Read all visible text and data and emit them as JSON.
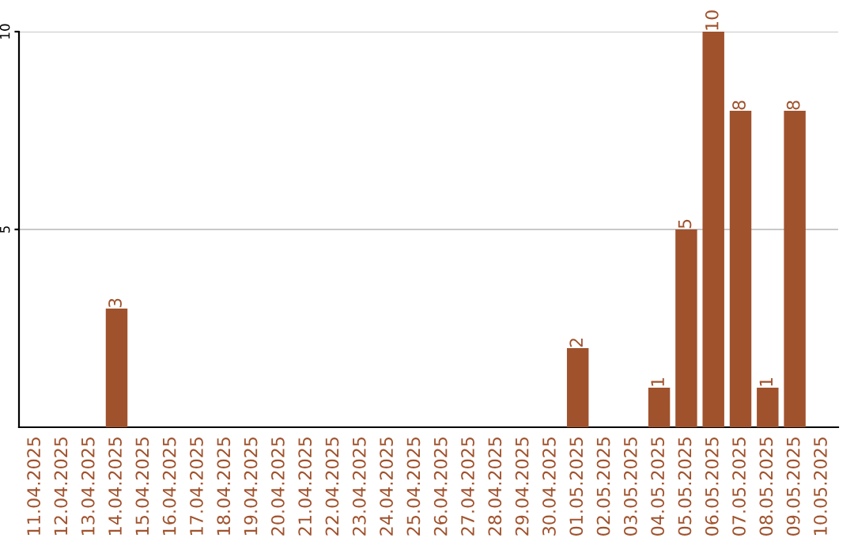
{
  "chart_data": {
    "type": "bar",
    "categories": [
      "11.04.2025",
      "12.04.2025",
      "13.04.2025",
      "14.04.2025",
      "15.04.2025",
      "16.04.2025",
      "17.04.2025",
      "18.04.2025",
      "19.04.2025",
      "20.04.2025",
      "21.04.2025",
      "22.04.2025",
      "23.04.2025",
      "24.04.2025",
      "25.04.2025",
      "26.04.2025",
      "27.04.2025",
      "28.04.2025",
      "29.04.2025",
      "30.04.2025",
      "01.05.2025",
      "02.05.2025",
      "03.05.2025",
      "04.05.2025",
      "05.05.2025",
      "06.05.2025",
      "07.05.2025",
      "08.05.2025",
      "09.05.2025",
      "10.05.2025"
    ],
    "values": [
      0,
      0,
      0,
      3,
      0,
      0,
      0,
      0,
      0,
      0,
      0,
      0,
      0,
      0,
      0,
      0,
      0,
      0,
      0,
      0,
      2,
      0,
      0,
      1,
      5,
      10,
      8,
      1,
      8,
      0
    ],
    "value_labels": [
      null,
      null,
      null,
      "3",
      null,
      null,
      null,
      null,
      null,
      null,
      null,
      null,
      null,
      null,
      null,
      null,
      null,
      null,
      null,
      null,
      "2",
      null,
      null,
      "1",
      "5",
      "10",
      "8",
      "1",
      "8",
      null
    ],
    "color": "#a0522d",
    "ylim": [
      0,
      10
    ],
    "yticks": [
      5,
      10
    ],
    "grid": "y"
  }
}
